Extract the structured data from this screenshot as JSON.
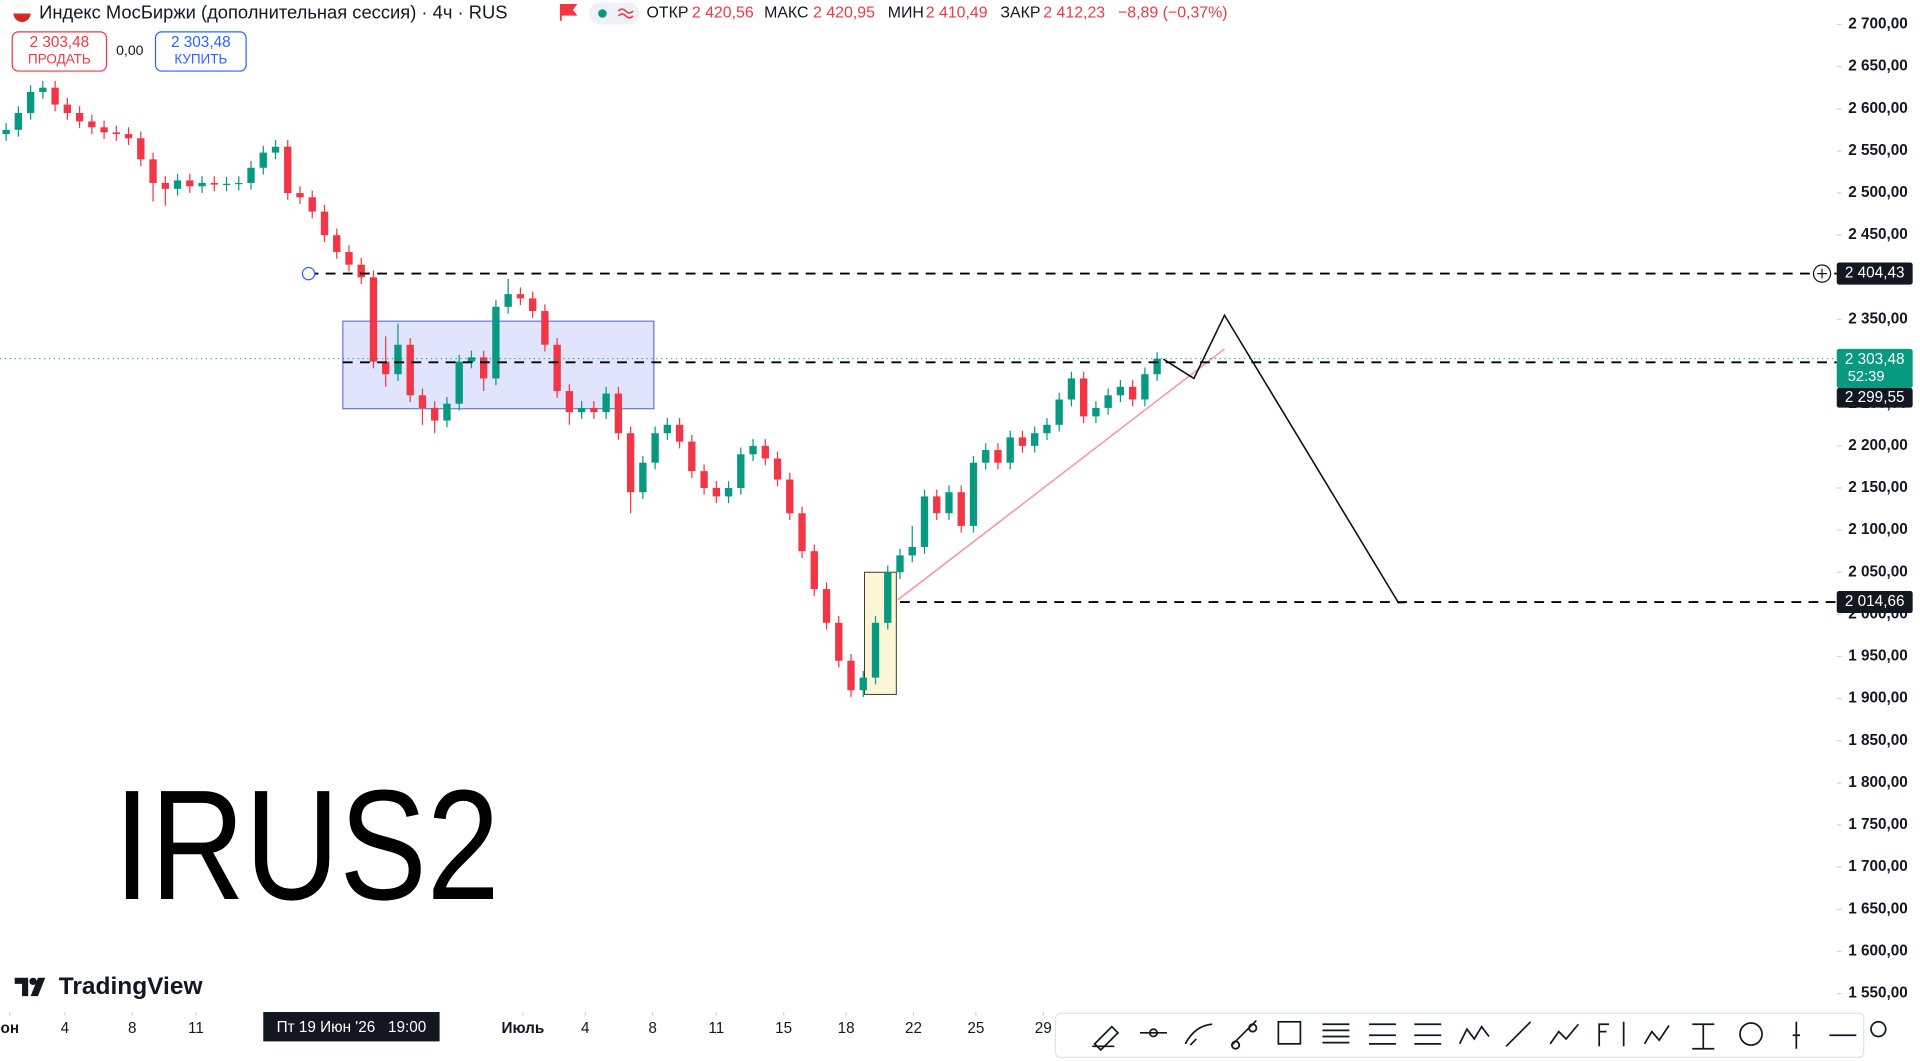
{
  "header": {
    "title": "Индекс МосБиржи (дополнительная сессия) · 4ч · RUS",
    "open_label": "ОТКР",
    "open": "2 420,56",
    "high_label": "МАКС",
    "high": "2 420,95",
    "low_label": "МИН",
    "low": "2 410,49",
    "close_label": "ЗАКР",
    "close": "2 412,23",
    "change": "−8,89 (−0,37%)"
  },
  "trade": {
    "sell_price": "2 303,48",
    "sell": "ПРОДАТЬ",
    "spread": "0,00",
    "buy_price": "2 303,48",
    "buy": "КУПИТЬ"
  },
  "logo": "TradingView",
  "chart_data": {
    "type": "candlestick",
    "up_color": "#089981",
    "down_color": "#f23645",
    "open": [
      2570,
      2575,
      2595,
      2620,
      2625,
      2605,
      2595,
      2585,
      2578,
      2572,
      2570,
      2565,
      2540,
      2512,
      2505,
      2515,
      2508,
      2512,
      2510,
      2511,
      2512,
      2530,
      2548,
      2555,
      2500,
      2495,
      2478,
      2450,
      2430,
      2415,
      2400,
      2300,
      2285,
      2320,
      2260,
      2245,
      2230,
      2250,
      2300,
      2305,
      2280,
      2365,
      2380,
      2375,
      2360,
      2320,
      2265,
      2240,
      2245,
      2240,
      2262,
      2215,
      2145,
      2180,
      2215,
      2225,
      2205,
      2170,
      2150,
      2140,
      2150,
      2190,
      2200,
      2185,
      2160,
      2120,
      2075,
      2030,
      1990,
      1945,
      1910,
      1925,
      1990,
      2050,
      2070,
      2080,
      2140,
      2120,
      2145,
      2105,
      2180,
      2195,
      2180,
      2210,
      2200,
      2215,
      2225,
      2255,
      2280,
      2235,
      2245,
      2260,
      2270,
      2255,
      2285
    ],
    "high": [
      2583,
      2603,
      2628,
      2633,
      2633,
      2613,
      2603,
      2593,
      2586,
      2580,
      2578,
      2573,
      2548,
      2520,
      2523,
      2523,
      2520,
      2520,
      2519,
      2520,
      2538,
      2556,
      2563,
      2563,
      2508,
      2503,
      2486,
      2458,
      2438,
      2423,
      2408,
      2330,
      2345,
      2328,
      2268,
      2253,
      2258,
      2308,
      2313,
      2313,
      2373,
      2398,
      2388,
      2383,
      2368,
      2328,
      2273,
      2253,
      2253,
      2270,
      2270,
      2223,
      2188,
      2223,
      2233,
      2233,
      2213,
      2178,
      2158,
      2158,
      2198,
      2208,
      2208,
      2193,
      2168,
      2128,
      2083,
      2038,
      1998,
      1953,
      1933,
      1998,
      2058,
      2078,
      2105,
      2148,
      2148,
      2153,
      2153,
      2188,
      2203,
      2203,
      2218,
      2218,
      2223,
      2233,
      2263,
      2288,
      2288,
      2253,
      2268,
      2278,
      2278,
      2293,
      2311
    ],
    "low": [
      2562,
      2567,
      2587,
      2612,
      2597,
      2587,
      2577,
      2570,
      2564,
      2562,
      2557,
      2532,
      2490,
      2485,
      2497,
      2500,
      2500,
      2502,
      2502,
      2503,
      2504,
      2522,
      2540,
      2492,
      2487,
      2470,
      2442,
      2422,
      2407,
      2392,
      2292,
      2270,
      2277,
      2252,
      2225,
      2215,
      2222,
      2242,
      2292,
      2265,
      2272,
      2357,
      2367,
      2352,
      2312,
      2257,
      2225,
      2232,
      2232,
      2232,
      2207,
      2120,
      2137,
      2172,
      2207,
      2197,
      2162,
      2142,
      2132,
      2132,
      2142,
      2182,
      2177,
      2152,
      2112,
      2067,
      2022,
      1982,
      1937,
      1902,
      1902,
      1917,
      1982,
      2042,
      2062,
      2072,
      2112,
      2112,
      2097,
      2097,
      2172,
      2172,
      2172,
      2192,
      2192,
      2207,
      2217,
      2247,
      2227,
      2227,
      2237,
      2252,
      2247,
      2247,
      2277
    ],
    "close": [
      2575,
      2595,
      2620,
      2625,
      2605,
      2595,
      2585,
      2578,
      2572,
      2570,
      2565,
      2540,
      2512,
      2505,
      2515,
      2508,
      2512,
      2510,
      2511,
      2512,
      2530,
      2548,
      2555,
      2500,
      2495,
      2478,
      2450,
      2430,
      2415,
      2400,
      2300,
      2285,
      2320,
      2260,
      2245,
      2230,
      2250,
      2300,
      2305,
      2280,
      2365,
      2380,
      2375,
      2360,
      2320,
      2265,
      2240,
      2245,
      2240,
      2262,
      2215,
      2145,
      2180,
      2215,
      2225,
      2205,
      2170,
      2150,
      2140,
      2150,
      2190,
      2200,
      2185,
      2160,
      2120,
      2075,
      2030,
      1990,
      1945,
      1910,
      1925,
      1990,
      2050,
      2070,
      2080,
      2140,
      2120,
      2145,
      2105,
      2180,
      2195,
      2180,
      2210,
      2200,
      2215,
      2225,
      2255,
      2280,
      2235,
      2245,
      2260,
      2270,
      2255,
      2285,
      2303.48
    ],
    "ylim": [
      1529.6,
      2729.1
    ],
    "yticks": [
      {
        "value": 1550,
        "label": "1 550,00"
      },
      {
        "value": 1600,
        "label": "1 600,00"
      },
      {
        "value": 1650,
        "label": "1 650,00"
      },
      {
        "value": 1700,
        "label": "1 700,00"
      },
      {
        "value": 1750,
        "label": "1 750,00"
      },
      {
        "value": 1800,
        "label": "1 800,00"
      },
      {
        "value": 1850,
        "label": "1 850,00"
      },
      {
        "value": 1900,
        "label": "1 900,00"
      },
      {
        "value": 1950,
        "label": "1 950,00"
      },
      {
        "value": 2000,
        "label": "2 000,00"
      },
      {
        "value": 2050,
        "label": "2 050,00"
      },
      {
        "value": 2100,
        "label": "2 100,00"
      },
      {
        "value": 2150,
        "label": "2 150,00"
      },
      {
        "value": 2200,
        "label": "2 200,00"
      },
      {
        "value": 2250,
        "label": "2 250,00"
      },
      {
        "value": 2300,
        "label": "2 300,00"
      },
      {
        "value": 2350,
        "label": "2 350,00"
      },
      {
        "value": 2400,
        "label": "2 400,00"
      },
      {
        "value": 2450,
        "label": "2 450,00"
      },
      {
        "value": 2500,
        "label": "2 500,00"
      },
      {
        "value": 2550,
        "label": "2 550,00"
      },
      {
        "value": 2600,
        "label": "2 600,00"
      },
      {
        "value": 2650,
        "label": "2 650,00"
      },
      {
        "value": 2700,
        "label": "2 700,00"
      }
    ],
    "xlim": [
      0,
      150
    ],
    "xticks": [
      {
        "value": 0.8,
        "label": "он"
      },
      {
        "value": 5.3,
        "label": "4"
      },
      {
        "value": 10.8,
        "label": "8"
      },
      {
        "value": 16,
        "label": "11"
      },
      {
        "value": 42.7,
        "label": "Июль"
      },
      {
        "value": 47.8,
        "label": "4"
      },
      {
        "value": 53.3,
        "label": "8"
      },
      {
        "value": 58.5,
        "label": "11"
      },
      {
        "value": 64,
        "label": "15"
      },
      {
        "value": 69.1,
        "label": "18"
      },
      {
        "value": 74.6,
        "label": "22"
      },
      {
        "value": 79.7,
        "label": "25"
      },
      {
        "value": 85.2,
        "label": "29"
      }
    ],
    "crosshair": {
      "x": 28.7,
      "label": "Пт 19 Июн '26   19:00"
    },
    "grid": false,
    "price_lines": [
      {
        "value": 2404.43,
        "label": "2 404,43",
        "start": 25.2
      },
      {
        "value": 2014.66,
        "label": "2 014,66",
        "start": 73.5
      }
    ],
    "last_price": {
      "value": 2303.48,
      "label": "2 303,48",
      "countdown": "52:39"
    },
    "bid": {
      "value": 2299.55,
      "label": "2 299,55"
    },
    "drawings": [
      {
        "type": "rectangle",
        "x": [
          28,
          53.4
        ],
        "y": [
          2348,
          2244
        ],
        "fill": "#dbe1fd",
        "stroke": "#4a5ad8"
      },
      {
        "type": "rectangle",
        "x": [
          70.6,
          73.2
        ],
        "y": [
          2050,
          1905
        ],
        "fill": "#fbf3cf",
        "stroke": "#3a3a2a"
      },
      {
        "type": "line",
        "x": [
          73.3,
          100
        ],
        "y": [
          2017,
          2315
        ],
        "stroke": "#f49aa2"
      },
      {
        "type": "line",
        "x": [
          95,
          97.5,
          100,
          114.2,
          114.7
        ],
        "y": [
          2303,
          2280,
          2355,
          2014,
          2014
        ],
        "stroke": "#111111"
      }
    ],
    "annotation": "IRUS2"
  }
}
